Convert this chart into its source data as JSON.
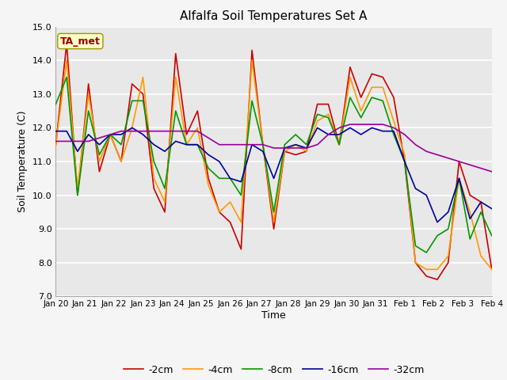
{
  "title": "Alfalfa Soil Temperatures Set A",
  "xlabel": "Time",
  "ylabel": "Soil Temperature (C)",
  "ylim": [
    7.0,
    15.0
  ],
  "yticks": [
    7.0,
    8.0,
    9.0,
    10.0,
    11.0,
    12.0,
    13.0,
    14.0,
    15.0
  ],
  "ytick_labels": [
    "7.0",
    "8.0",
    "9.0",
    "10.0",
    "11.0",
    "12.0",
    "13.0",
    "14.0",
    "15.0"
  ],
  "xtick_labels": [
    "Jan 20",
    "Jan 21",
    "Jan 22",
    "Jan 23",
    "Jan 24",
    "Jan 25",
    "Jan 26",
    "Jan 27",
    "Jan 28",
    "Jan 29",
    "Jan 30",
    "Jan 31",
    "Feb 1",
    "Feb 2",
    "Feb 3",
    "Feb 4"
  ],
  "annotation_text": "TA_met",
  "annotation_color": "#990000",
  "annotation_bg": "#ffffcc",
  "annotation_edge": "#999900",
  "line_colors": [
    "#cc0000",
    "#ff9900",
    "#009900",
    "#000099",
    "#990099"
  ],
  "line_labels": [
    "-2cm",
    "-4cm",
    "-8cm",
    "-16cm",
    "-32cm"
  ],
  "line_width": 1.2,
  "bg_color": "#e8e8e8",
  "fig_color": "#f5f5f5",
  "grid_color": "#ffffff",
  "series": {
    "m2cm": [
      11.5,
      14.5,
      10.0,
      13.3,
      10.7,
      11.8,
      11.0,
      13.3,
      13.0,
      10.2,
      9.5,
      14.2,
      11.8,
      12.5,
      10.5,
      9.5,
      9.2,
      8.4,
      14.3,
      11.5,
      9.0,
      11.3,
      11.2,
      11.3,
      12.7,
      12.7,
      11.5,
      13.8,
      12.9,
      13.6,
      13.5,
      12.9,
      11.0,
      8.0,
      7.6,
      7.5,
      8.0,
      11.0,
      10.0,
      9.8,
      7.8
    ],
    "m4cm": [
      11.5,
      14.0,
      10.2,
      13.0,
      11.0,
      11.8,
      11.0,
      12.0,
      13.5,
      10.5,
      9.8,
      13.5,
      11.5,
      12.0,
      10.3,
      9.5,
      9.8,
      9.2,
      14.0,
      11.5,
      9.2,
      11.3,
      11.5,
      11.3,
      12.2,
      12.4,
      11.5,
      13.5,
      12.5,
      13.2,
      13.2,
      12.2,
      11.2,
      8.0,
      7.8,
      7.8,
      8.2,
      10.5,
      9.5,
      8.2,
      7.8
    ],
    "m8cm": [
      12.7,
      13.5,
      10.0,
      12.5,
      11.2,
      11.8,
      11.5,
      12.8,
      12.8,
      11.0,
      10.2,
      12.5,
      11.5,
      11.5,
      10.8,
      10.5,
      10.5,
      10.0,
      12.8,
      11.5,
      9.5,
      11.5,
      11.8,
      11.5,
      12.4,
      12.3,
      11.5,
      12.9,
      12.3,
      12.9,
      12.8,
      11.8,
      11.0,
      8.5,
      8.3,
      8.8,
      9.0,
      10.5,
      8.7,
      9.5,
      8.8
    ],
    "m16cm": [
      11.9,
      11.9,
      11.3,
      11.8,
      11.5,
      11.8,
      11.8,
      12.0,
      11.8,
      11.5,
      11.3,
      11.6,
      11.5,
      11.5,
      11.2,
      11.0,
      10.5,
      10.4,
      11.5,
      11.3,
      10.5,
      11.4,
      11.5,
      11.4,
      12.0,
      11.8,
      11.8,
      12.0,
      11.8,
      12.0,
      11.9,
      11.9,
      11.0,
      10.2,
      10.0,
      9.2,
      9.5,
      10.5,
      9.3,
      9.8,
      9.6
    ],
    "m32cm": [
      11.6,
      11.6,
      11.6,
      11.6,
      11.7,
      11.8,
      11.9,
      11.9,
      11.9,
      11.9,
      11.9,
      11.9,
      11.9,
      11.9,
      11.7,
      11.5,
      11.5,
      11.5,
      11.5,
      11.5,
      11.4,
      11.4,
      11.4,
      11.4,
      11.5,
      11.8,
      12.0,
      12.1,
      12.1,
      12.1,
      12.1,
      12.0,
      11.8,
      11.5,
      11.3,
      11.2,
      11.1,
      11.0,
      10.9,
      10.8,
      10.7
    ]
  },
  "n_points": 41
}
